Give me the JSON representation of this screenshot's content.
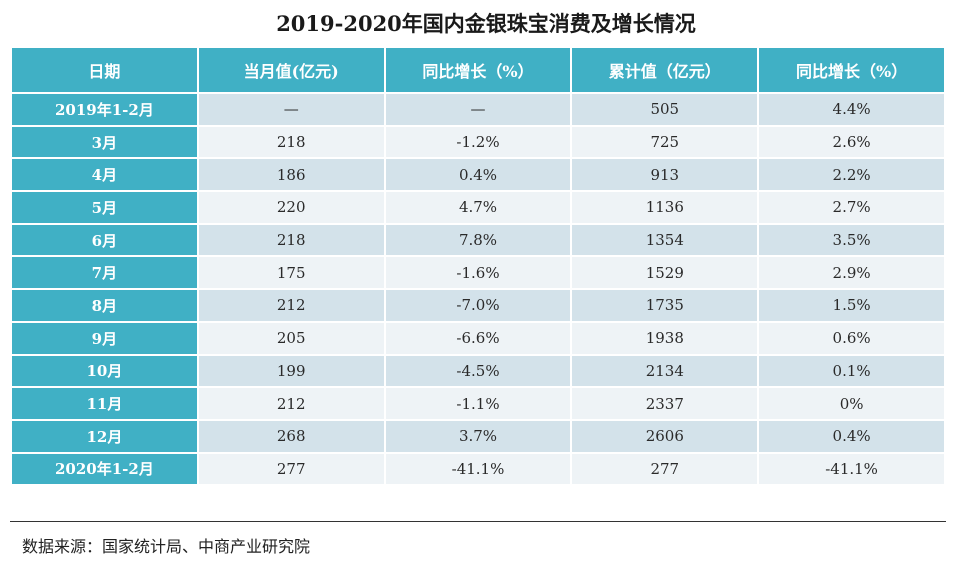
{
  "title": "2019-2020年国内金银珠宝消费及增长情况",
  "source": "数据来源：国家统计局、中商产业研究院",
  "chart_data": {
    "type": "table",
    "title": "2019-2020年国内金银珠宝消费及增长情况",
    "columns": [
      "日期",
      "当月值(亿元)",
      "同比增长（%）",
      "累计值（亿元）",
      "同比增长（%）"
    ],
    "rows": [
      [
        "2019年1-2月",
        "—",
        "—",
        "505",
        "4.4%"
      ],
      [
        "3月",
        "218",
        "-1.2%",
        "725",
        "2.6%"
      ],
      [
        "4月",
        "186",
        "0.4%",
        "913",
        "2.2%"
      ],
      [
        "5月",
        "220",
        "4.7%",
        "1136",
        "2.7%"
      ],
      [
        "6月",
        "218",
        "7.8%",
        "1354",
        "3.5%"
      ],
      [
        "7月",
        "175",
        "-1.6%",
        "1529",
        "2.9%"
      ],
      [
        "8月",
        "212",
        "-7.0%",
        "1735",
        "1.5%"
      ],
      [
        "9月",
        "205",
        "-6.6%",
        "1938",
        "0.6%"
      ],
      [
        "10月",
        "199",
        "-4.5%",
        "2134",
        "0.1%"
      ],
      [
        "11月",
        "212",
        "-1.1%",
        "2337",
        "0%"
      ],
      [
        "12月",
        "268",
        "3.7%",
        "2606",
        "0.4%"
      ],
      [
        "2020年1-2月",
        "277",
        "-41.1%",
        "277",
        "-41.1%"
      ]
    ]
  }
}
